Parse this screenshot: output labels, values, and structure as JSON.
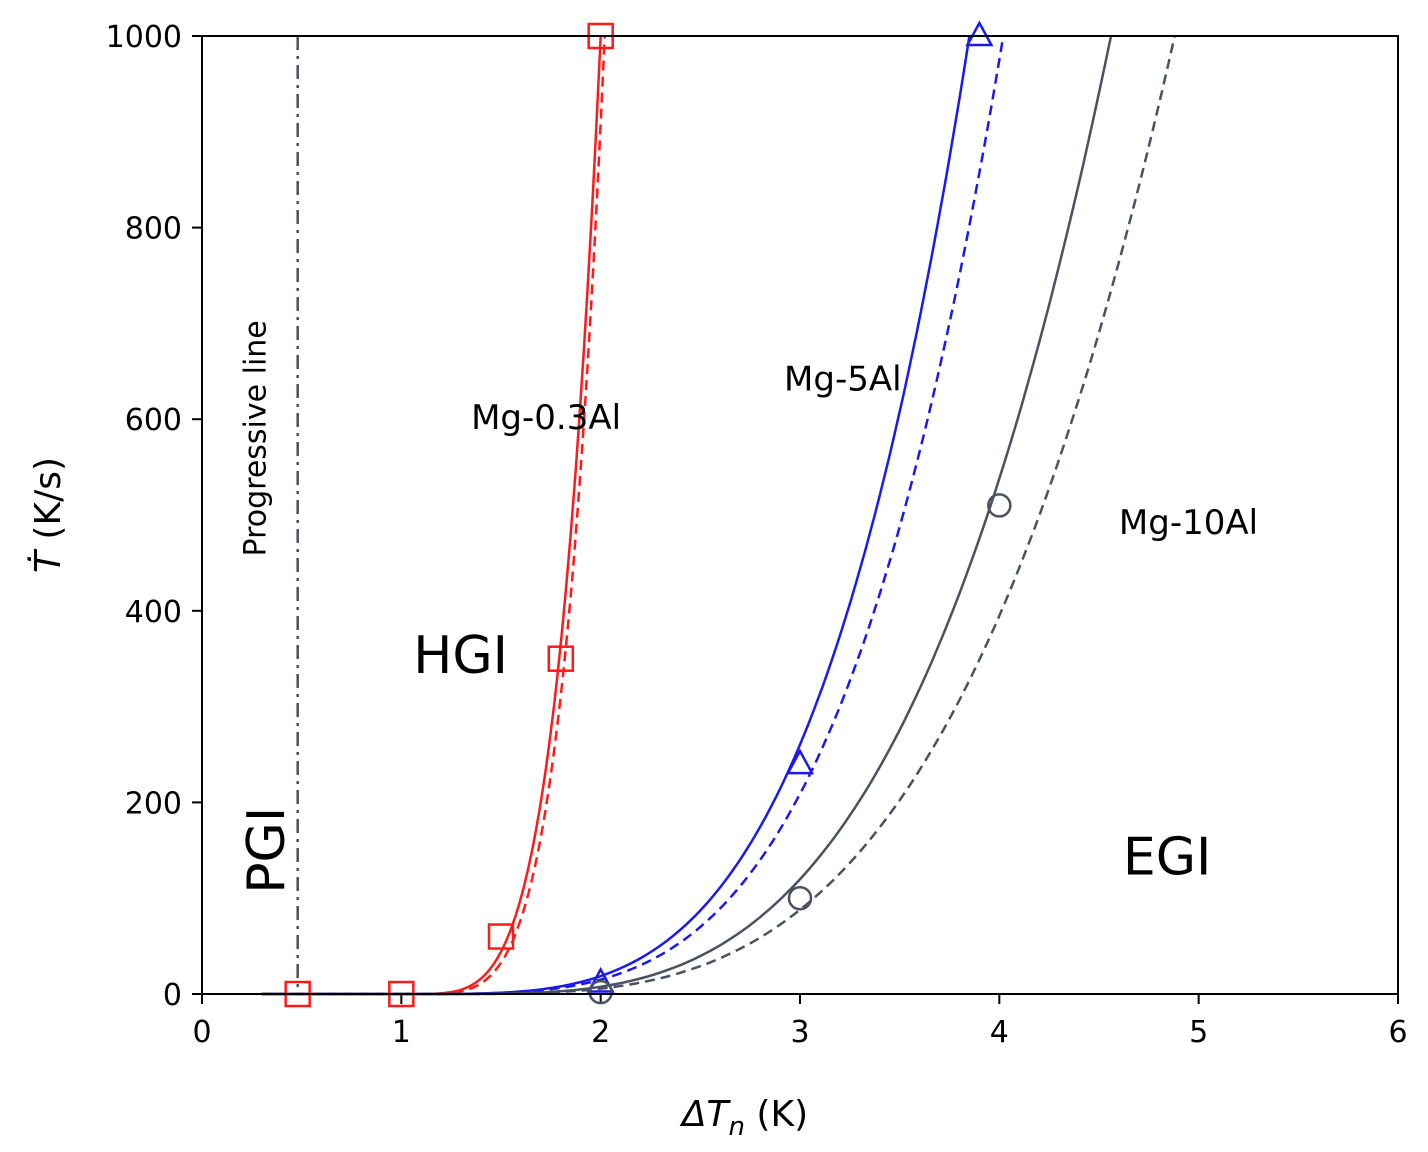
{
  "chart_data": {
    "type": "line",
    "xlabel_symbol": "ΔT",
    "xlabel_sub": "n",
    "xlabel_unit": " (K)",
    "ylabel_symbol": "Ṫ",
    "ylabel_unit": "  (K/s)",
    "xlim": [
      0,
      6
    ],
    "ylim": [
      0,
      1000
    ],
    "xticks": [
      0,
      1,
      2,
      3,
      4,
      5,
      6
    ],
    "yticks": [
      0,
      200,
      400,
      600,
      800,
      1000
    ],
    "grid": false,
    "progressive_line": {
      "x": 0.48,
      "label": "Progressive line",
      "color": "#4a5160"
    },
    "regions": [
      {
        "name": "PGI",
        "x": 0.32,
        "y": 150,
        "rotate": true
      },
      {
        "name": "HGI",
        "x": 1.06,
        "y": 335,
        "rotate": false
      },
      {
        "name": "EGI",
        "x": 4.62,
        "y": 125,
        "rotate": false
      }
    ],
    "series": [
      {
        "name": "Mg-0.3Al",
        "color": "#ff1a1a",
        "marker": "square",
        "points": [
          [
            0.48,
            0
          ],
          [
            1.0,
            0
          ],
          [
            1.5,
            60
          ],
          [
            1.8,
            350
          ],
          [
            2.0,
            1000
          ]
        ],
        "solid": {
          "x0": 1.0,
          "x1": 2.0,
          "y1": 1000,
          "p": 4.5
        },
        "dashed": {
          "x0": 1.0,
          "x1": 2.02,
          "y1": 1000,
          "p": 4.8
        },
        "label_pos": [
          1.35,
          590
        ]
      },
      {
        "name": "Mg-5Al",
        "color": "#1a1aee",
        "marker": "triangle",
        "points": [
          [
            2.0,
            12
          ],
          [
            3.0,
            240
          ],
          [
            3.9,
            1000
          ]
        ],
        "solid": {
          "x0": 1.0,
          "x1": 3.85,
          "y1": 1000,
          "p": 3.8
        },
        "dashed": {
          "x0": 1.0,
          "x1": 4.02,
          "y1": 1000,
          "p": 3.8
        },
        "label_pos": [
          2.92,
          630
        ]
      },
      {
        "name": "Mg-10Al",
        "color": "#4a5160",
        "marker": "circle",
        "points": [
          [
            2.0,
            2
          ],
          [
            3.0,
            100
          ],
          [
            4.0,
            510
          ]
        ],
        "solid": {
          "x0": 1.2,
          "x1": 4.56,
          "y1": 1000,
          "p": 3.4
        },
        "dashed": {
          "x0": 1.2,
          "x1": 4.88,
          "y1": 1000,
          "p": 3.4
        },
        "label_pos": [
          4.6,
          480
        ]
      }
    ]
  }
}
